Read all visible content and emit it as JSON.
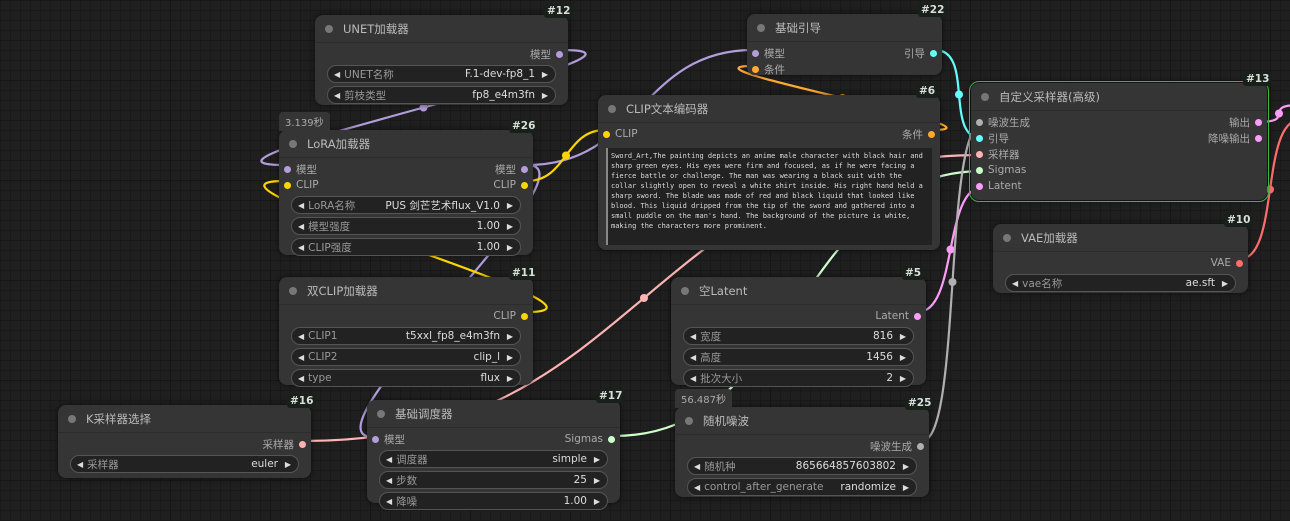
{
  "nodes": [
    {
      "id": "#12",
      "title": "UNET加载器",
      "inputs": [],
      "outputs": [
        {
          "label": "模型",
          "color": "#b39ddb"
        }
      ],
      "widgets": [
        {
          "label": "UNET名称",
          "value": "F.1-dev-fp8_1"
        },
        {
          "label": "剪枝类型",
          "value": "fp8_e4m3fn"
        }
      ]
    },
    {
      "id": "#26",
      "title": "LoRA加载器",
      "inputs": [
        {
          "label": "模型",
          "color": "#b39ddb"
        },
        {
          "label": "CLIP",
          "color": "#ffd500"
        }
      ],
      "outputs": [
        {
          "label": "模型",
          "color": "#b39ddb"
        },
        {
          "label": "CLIP",
          "color": "#ffd500"
        }
      ],
      "widgets": [
        {
          "label": "LoRA名称",
          "value": "PUS 剑芒艺术flux_V1.0"
        },
        {
          "label": "模型强度",
          "value": "1.00"
        },
        {
          "label": "CLIP强度",
          "value": "1.00"
        }
      ],
      "timer": "3.139秒"
    },
    {
      "id": "#11",
      "title": "双CLIP加载器",
      "inputs": [],
      "outputs": [
        {
          "label": "CLIP",
          "color": "#ffd500"
        }
      ],
      "widgets": [
        {
          "label": "CLIP1",
          "value": "t5xxl_fp8_e4m3fn"
        },
        {
          "label": "CLIP2",
          "value": "clip_l"
        },
        {
          "label": "type",
          "value": "flux"
        }
      ]
    },
    {
      "id": "#22",
      "title": "基础引导",
      "inputs": [
        {
          "label": "模型",
          "color": "#b39ddb"
        },
        {
          "label": "条件",
          "color": "#ffa931"
        }
      ],
      "outputs": [
        {
          "label": "引导",
          "color": "#66ffff"
        }
      ],
      "widgets": []
    },
    {
      "id": "#6",
      "title": "CLIP文本编码器",
      "inputs": [
        {
          "label": "CLIP",
          "color": "#ffd500"
        }
      ],
      "outputs": [
        {
          "label": "条件",
          "color": "#ffa931"
        }
      ],
      "widgets": [],
      "text": "Sword_Art,The painting depicts an anime male character with black hair and sharp green eyes. His eyes were firm and focused, as if he were facing a fierce battle or challenge. The man was wearing a black suit with the collar slightly open to reveal a white shirt inside. His right hand held a sharp sword. The blade was made of red and black liquid that looked like blood. This liquid dripped from the tip of the sword and gathered into a small puddle on the man's hand. The background of the picture is white, making the characters more prominent."
    },
    {
      "id": "#13",
      "title": "自定义采样器(高级)",
      "selected": true,
      "inputs": [
        {
          "label": "噪波生成",
          "color": "#b0b0b0"
        },
        {
          "label": "引导",
          "color": "#66ffff"
        },
        {
          "label": "采样器",
          "color": "#ffb3b3"
        },
        {
          "label": "Sigmas",
          "color": "#cdffcd"
        },
        {
          "label": "Latent",
          "color": "#ff9cf9"
        }
      ],
      "outputs": [
        {
          "label": "输出",
          "color": "#ff9cf9"
        },
        {
          "label": "降噪输出",
          "color": "#ff9cf9"
        }
      ],
      "widgets": []
    },
    {
      "id": "#10",
      "title": "VAE加载器",
      "inputs": [],
      "outputs": [
        {
          "label": "VAE",
          "color": "#ff6e6e"
        }
      ],
      "widgets": [
        {
          "label": "vae名称",
          "value": "ae.sft"
        }
      ]
    },
    {
      "id": "#5",
      "title": "空Latent",
      "inputs": [],
      "outputs": [
        {
          "label": "Latent",
          "color": "#ff9cf9"
        }
      ],
      "widgets": [
        {
          "label": "宽度",
          "value": "816"
        },
        {
          "label": "高度",
          "value": "1456"
        },
        {
          "label": "批次大小",
          "value": "2"
        }
      ]
    },
    {
      "id": "#16",
      "title": "K采样器选择",
      "inputs": [],
      "outputs": [
        {
          "label": "采样器",
          "color": "#ffb3b3"
        }
      ],
      "widgets": [
        {
          "label": "采样器",
          "value": "euler"
        }
      ]
    },
    {
      "id": "#17",
      "title": "基础调度器",
      "inputs": [
        {
          "label": "模型",
          "color": "#b39ddb"
        }
      ],
      "outputs": [
        {
          "label": "Sigmas",
          "color": "#cdffcd"
        }
      ],
      "widgets": [
        {
          "label": "调度器",
          "value": "simple"
        },
        {
          "label": "步数",
          "value": "25"
        },
        {
          "label": "降噪",
          "value": "1.00"
        }
      ]
    },
    {
      "id": "#25",
      "title": "随机噪波",
      "inputs": [],
      "outputs": [
        {
          "label": "噪波生成",
          "color": "#b0b0b0"
        }
      ],
      "widgets": [
        {
          "label": "随机种",
          "value": "865664857603802"
        },
        {
          "label": "control_after_generate",
          "value": "randomize"
        }
      ],
      "timer": "56.487秒"
    }
  ]
}
